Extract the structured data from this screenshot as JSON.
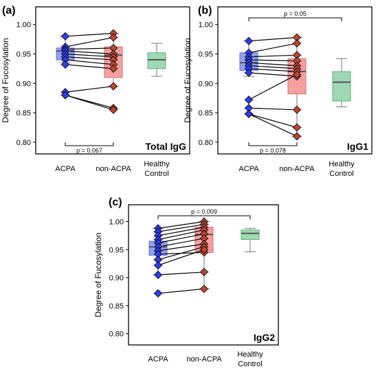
{
  "colors": {
    "acpa_box": "#8fa3f0",
    "acpa_box_stroke": "#6070d0",
    "acpa_marker": "#2d3ee6",
    "nonacpa_box": "#f6a0a0",
    "nonacpa_box_stroke": "#d07070",
    "nonacpa_marker": "#b8472e",
    "healthy_box": "#9ed9b4",
    "healthy_box_stroke": "#5fae7e",
    "pair_line": "#000000",
    "outlier": "#e040e0"
  },
  "chart_data": [
    {
      "type": "box_paired",
      "panel_label": "(a)",
      "caption": "Total IgG",
      "ylabel": "Degree of Fucosylation",
      "ylim": [
        0.78,
        1.03
      ],
      "yticks": [
        "0.80",
        "0.85",
        "0.90",
        "0.95",
        "1.00"
      ],
      "categories": [
        "ACPA",
        "non-ACPA",
        "Healthy Control"
      ],
      "boxes": [
        {
          "q1": 0.94,
          "median": 0.955,
          "q3": 0.96,
          "whisker_low": 0.935,
          "whisker_high": 0.98
        },
        {
          "q1": 0.91,
          "median": 0.948,
          "q3": 0.962,
          "whisker_low": 0.895,
          "whisker_high": 0.985
        },
        {
          "q1": 0.925,
          "median": 0.94,
          "q3": 0.952,
          "whisker_low": 0.912,
          "whisker_high": 0.968
        }
      ],
      "pairs": [
        [
          0.98,
          0.985
        ],
        [
          0.962,
          0.978
        ],
        [
          0.958,
          0.96
        ],
        [
          0.955,
          0.95
        ],
        [
          0.95,
          0.945
        ],
        [
          0.945,
          0.94
        ],
        [
          0.94,
          0.932
        ],
        [
          0.932,
          0.925
        ],
        [
          0.885,
          0.895
        ],
        [
          0.88,
          0.858
        ],
        [
          0.88,
          0.855
        ]
      ],
      "annotations": [
        {
          "text": "p = 0.067",
          "from": 0,
          "to": 1,
          "position": "below"
        }
      ]
    },
    {
      "type": "box_paired",
      "panel_label": "(b)",
      "caption": "IgG1",
      "ylabel": "Degree of Fucosylation",
      "ylim": [
        0.78,
        1.03
      ],
      "yticks": [
        "0.80",
        "0.85",
        "0.90",
        "0.95",
        "1.00"
      ],
      "categories": [
        "ACPA",
        "non-ACPA",
        "Healthy Control"
      ],
      "boxes": [
        {
          "q1": 0.922,
          "median": 0.935,
          "q3": 0.952,
          "whisker_low": 0.912,
          "whisker_high": 0.972
        },
        {
          "q1": 0.882,
          "median": 0.92,
          "q3": 0.942,
          "whisker_low": 0.81,
          "whisker_high": 0.978
        },
        {
          "q1": 0.87,
          "median": 0.902,
          "q3": 0.92,
          "whisker_low": 0.86,
          "whisker_high": 0.942
        }
      ],
      "pairs": [
        [
          0.972,
          0.978
        ],
        [
          0.952,
          0.968
        ],
        [
          0.945,
          0.948
        ],
        [
          0.94,
          0.938
        ],
        [
          0.935,
          0.93
        ],
        [
          0.93,
          0.925
        ],
        [
          0.925,
          0.92
        ],
        [
          0.918,
          0.912
        ],
        [
          0.872,
          0.915
        ],
        [
          0.858,
          0.855
        ],
        [
          0.848,
          0.825
        ],
        [
          0.848,
          0.81
        ]
      ],
      "annotations": [
        {
          "text": "p = 0.05",
          "from": 0,
          "to": 2,
          "position": "above"
        },
        {
          "text": "p = 0.078",
          "from": 0,
          "to": 1,
          "position": "below"
        }
      ]
    },
    {
      "type": "box_paired",
      "panel_label": "(c)",
      "caption": "IgG2",
      "ylabel": "Degree of Fucosylation",
      "ylim": [
        0.78,
        1.03
      ],
      "yticks": [
        "0.80",
        "0.85",
        "0.90",
        "0.95",
        "1.00"
      ],
      "categories": [
        "ACPA",
        "non-ACPA",
        "Healthy Control"
      ],
      "boxes": [
        {
          "q1": 0.94,
          "median": 0.955,
          "q3": 0.965,
          "whisker_low": 0.905,
          "whisker_high": 0.988
        },
        {
          "q1": 0.945,
          "median": 0.977,
          "q3": 0.99,
          "whisker_low": 0.88,
          "whisker_high": 1.0
        },
        {
          "q1": 0.968,
          "median": 0.979,
          "q3": 0.985,
          "whisker_low": 0.946,
          "whisker_high": 0.988
        }
      ],
      "pairs": [
        [
          0.988,
          1.0
        ],
        [
          0.982,
          0.995
        ],
        [
          0.975,
          0.99
        ],
        [
          0.968,
          0.985
        ],
        [
          0.962,
          0.978
        ],
        [
          0.955,
          0.97
        ],
        [
          0.948,
          0.96
        ],
        [
          0.942,
          0.945
        ],
        [
          0.932,
          0.955
        ],
        [
          0.922,
          0.95
        ],
        [
          0.905,
          0.91
        ],
        [
          0.872,
          0.88
        ]
      ],
      "annotations": [
        {
          "text": "p = 0.009",
          "from": 0,
          "to": 2,
          "position": "above"
        }
      ]
    }
  ]
}
